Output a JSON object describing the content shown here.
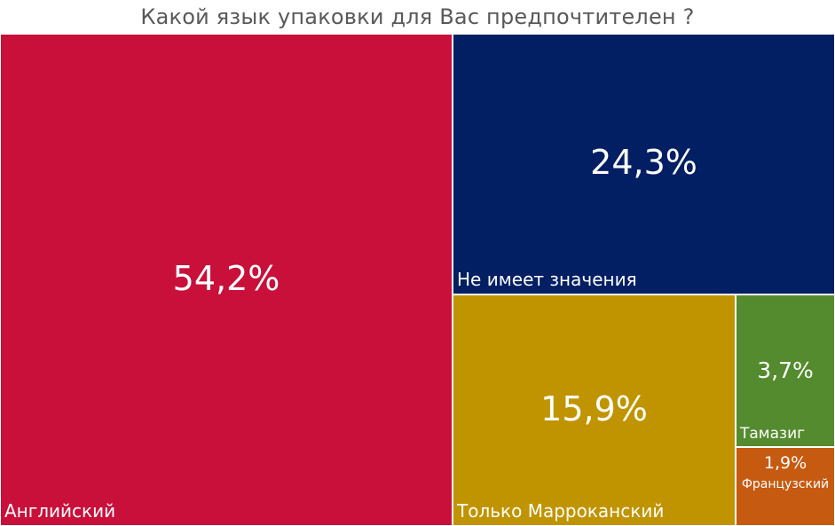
{
  "chart_data": {
    "type": "treemap",
    "title": "Какой язык упаковки для Вас предпочтителен ?",
    "items": [
      {
        "category": "Английский",
        "value": 54.2,
        "label": "54,2%",
        "color": "#c8103a"
      },
      {
        "category": "Не имеет значения",
        "value": 24.3,
        "label": "24,3%",
        "color": "#031f63"
      },
      {
        "category": "Только Марроканский",
        "value": 15.9,
        "label": "15,9%",
        "color": "#c09400"
      },
      {
        "category": "Тамазиг",
        "value": 3.7,
        "label": "3,7%",
        "color": "#558b2f"
      },
      {
        "category": "Французский",
        "value": 1.9,
        "label": "1,9%",
        "color": "#c65a10"
      }
    ]
  }
}
